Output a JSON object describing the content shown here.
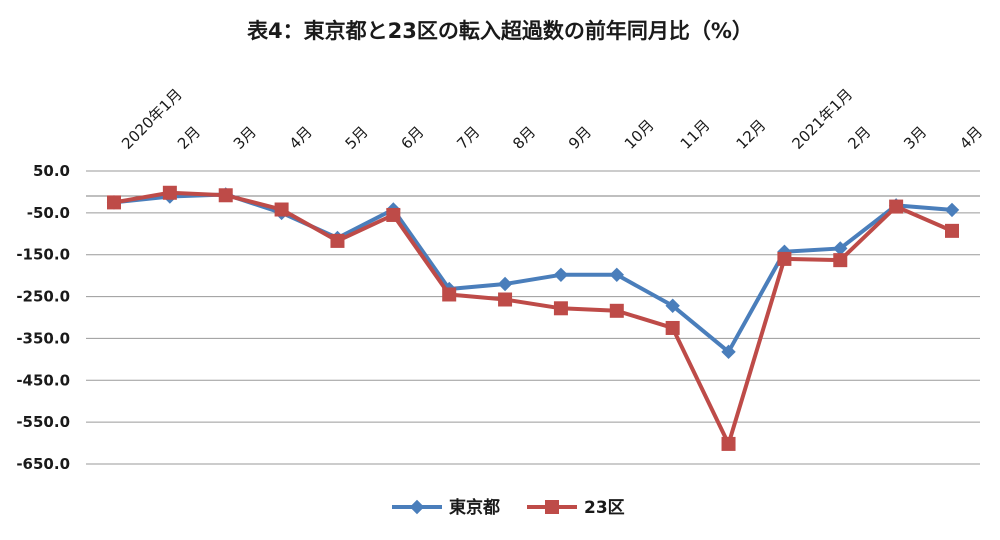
{
  "chart_data": {
    "type": "line",
    "title": "表4：東京都と23区の転入超過数の前年同月比（%）",
    "categories": [
      "2020年1月",
      "2月",
      "3月",
      "4月",
      "5月",
      "6月",
      "7月",
      "8月",
      "9月",
      "10月",
      "11月",
      "12月",
      "2021年1月",
      "2月",
      "3月",
      "4月"
    ],
    "series": [
      {
        "name": "東京都",
        "color": "#4a7ebb",
        "marker": "diamond",
        "values": [
          -25,
          -11,
          -6,
          -50,
          -110,
          -42,
          -232,
          -220,
          -198,
          -198,
          -272,
          -382,
          -143,
          -135,
          -32,
          -43
        ]
      },
      {
        "name": "23区",
        "color": "#be4b48",
        "marker": "square",
        "values": [
          -25,
          -2,
          -8,
          -42,
          -117,
          -55,
          -245,
          -257,
          -278,
          -284,
          -325,
          -602,
          -160,
          -163,
          -35,
          -93
        ]
      }
    ],
    "y_ticks": [
      "50.0",
      "-50.0",
      "-150.0",
      "-250.0",
      "-350.0",
      "-450.0",
      "-550.0",
      "-650.0"
    ],
    "ylim": [
      -650,
      50
    ],
    "grid": true,
    "legend_position": "bottom-center"
  }
}
